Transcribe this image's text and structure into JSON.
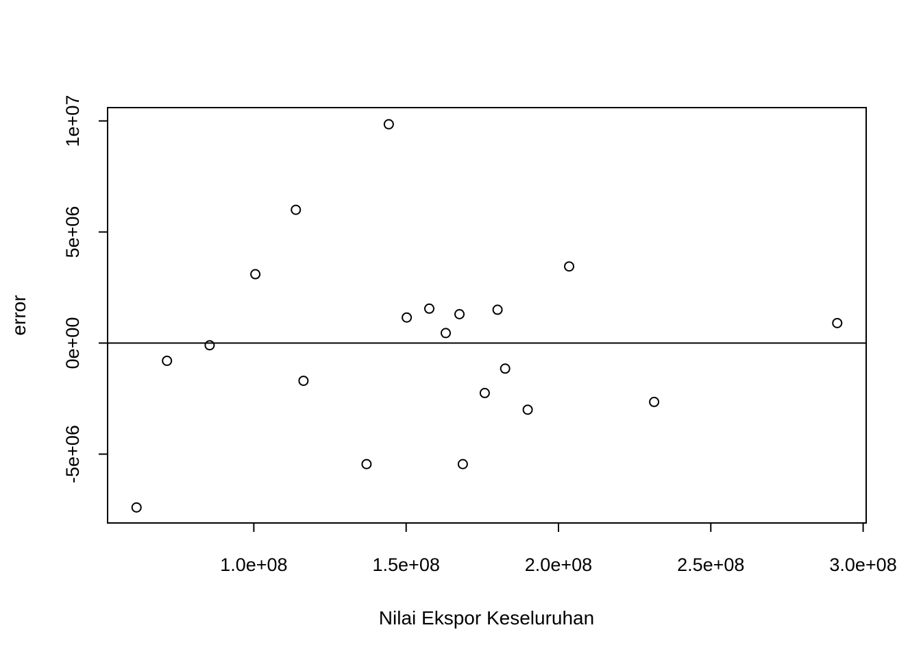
{
  "chart_data": {
    "type": "scatter",
    "title": "",
    "xlabel": "Nilai Ekspor Keseluruhan",
    "ylabel": "error",
    "xlim": [
      52000000,
      301000000
    ],
    "ylim": [
      -8100000,
      10600000
    ],
    "x_ticks": [
      {
        "value": 100000000,
        "label": "1.0e+08"
      },
      {
        "value": 150000000,
        "label": "1.5e+08"
      },
      {
        "value": 200000000,
        "label": "2.0e+08"
      },
      {
        "value": 250000000,
        "label": "2.5e+08"
      },
      {
        "value": 300000000,
        "label": "3.0e+08"
      }
    ],
    "y_ticks": [
      {
        "value": -5000000,
        "label": "-5e+06"
      },
      {
        "value": 0,
        "label": "0e+00"
      },
      {
        "value": 5000000,
        "label": "5e+06"
      },
      {
        "value": 10000000,
        "label": "1e+07"
      }
    ],
    "reference_line_y": 0,
    "grid": false,
    "legend": "none",
    "marker": "open-circle",
    "colors": {
      "points": "#000000",
      "axes": "#000000",
      "background": "#ffffff"
    },
    "series": [
      {
        "points": [
          {
            "x": 61500000,
            "y": -7400000
          },
          {
            "x": 71500000,
            "y": -800000
          },
          {
            "x": 85500000,
            "y": -100000
          },
          {
            "x": 100500000,
            "y": 3100000
          },
          {
            "x": 113800000,
            "y": 6000000
          },
          {
            "x": 116300000,
            "y": -1700000
          },
          {
            "x": 137000000,
            "y": -5450000
          },
          {
            "x": 144300000,
            "y": 9850000
          },
          {
            "x": 150200000,
            "y": 1150000
          },
          {
            "x": 157600000,
            "y": 1550000
          },
          {
            "x": 163000000,
            "y": 450000
          },
          {
            "x": 167500000,
            "y": 1300000
          },
          {
            "x": 168600000,
            "y": -5450000
          },
          {
            "x": 175800000,
            "y": -2250000
          },
          {
            "x": 180000000,
            "y": 1500000
          },
          {
            "x": 182500000,
            "y": -1150000
          },
          {
            "x": 189900000,
            "y": -3000000
          },
          {
            "x": 203500000,
            "y": 3450000
          },
          {
            "x": 231400000,
            "y": -2650000
          },
          {
            "x": 291500000,
            "y": 900000
          }
        ]
      }
    ]
  }
}
